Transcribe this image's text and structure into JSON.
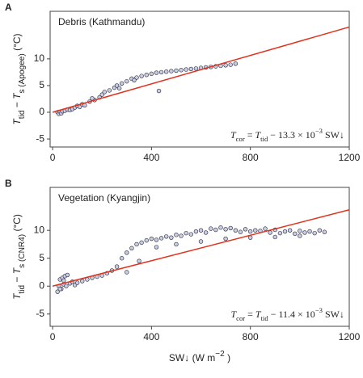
{
  "chart_data": [
    {
      "type": "scatter",
      "panel_label": "A",
      "annotation": "Debris (Kathmandu)",
      "equation": [
        {
          "text": "T",
          "style": "italic"
        },
        {
          "text": "cor",
          "style": "sub"
        },
        {
          "text": " = ",
          "style": "normal"
        },
        {
          "text": "T",
          "style": "italic"
        },
        {
          "text": "tid",
          "style": "sub"
        },
        {
          "text": " − 13.3 × 10",
          "style": "normal"
        },
        {
          "text": "−3",
          "style": "sup"
        },
        {
          "text": " SW↓",
          "style": "normal"
        }
      ],
      "y_label": [
        {
          "text": "T",
          "style": "italic"
        },
        {
          "text": "tid",
          "style": "sub"
        },
        {
          "text": " − ",
          "style": "normal"
        },
        {
          "text": "T",
          "style": "italic"
        },
        {
          "text": "s (Apogee)",
          "style": "sub"
        },
        {
          "text": "  (°C)",
          "style": "normal"
        }
      ],
      "x": [
        20,
        25,
        30,
        35,
        40,
        50,
        60,
        70,
        80,
        90,
        100,
        110,
        120,
        130,
        150,
        170,
        190,
        200,
        210,
        230,
        250,
        260,
        280,
        300,
        320,
        340,
        360,
        380,
        400,
        420,
        440,
        460,
        480,
        500,
        520,
        540,
        560,
        580,
        600,
        620,
        640,
        660,
        680,
        700,
        720,
        740,
        160,
        270,
        330,
        430
      ],
      "values": [
        0,
        -0.3,
        0.1,
        -0.2,
        0.2,
        0.3,
        0.5,
        0.4,
        0.6,
        0.9,
        1.2,
        1.0,
        1.5,
        1.3,
        2.0,
        2.3,
        2.8,
        3.3,
        3.8,
        4.1,
        4.6,
        5.0,
        5.4,
        5.8,
        6.3,
        6.5,
        6.8,
        7.0,
        7.2,
        7.4,
        7.5,
        7.6,
        7.7,
        7.8,
        7.9,
        8.0,
        8.1,
        8.2,
        8.3,
        8.4,
        8.5,
        8.6,
        8.7,
        8.8,
        8.9,
        9.1,
        2.6,
        4.5,
        6.0,
        4.0
      ],
      "color": "#c9cde3",
      "fit": {
        "x": [
          0,
          1200
        ],
        "values": [
          0,
          15.96
        ],
        "color": "#e0321c"
      },
      "xlim": [
        -10,
        1200
      ],
      "xticks": [
        0,
        400,
        800,
        1200
      ],
      "ylim": [
        -6.5,
        18.9
      ],
      "yticks": [
        -5,
        0,
        5,
        10
      ]
    },
    {
      "type": "scatter",
      "panel_label": "B",
      "annotation": "Vegetation (Kyangjin)",
      "equation": [
        {
          "text": "T",
          "style": "italic"
        },
        {
          "text": "cor",
          "style": "sub"
        },
        {
          "text": " = ",
          "style": "normal"
        },
        {
          "text": "T",
          "style": "italic"
        },
        {
          "text": "tid",
          "style": "sub"
        },
        {
          "text": " − 11.4 × 10",
          "style": "normal"
        },
        {
          "text": "−3",
          "style": "sup"
        },
        {
          "text": " SW↓",
          "style": "normal"
        }
      ],
      "y_label": [
        {
          "text": "T",
          "style": "italic"
        },
        {
          "text": "tid",
          "style": "sub"
        },
        {
          "text": " − ",
          "style": "normal"
        },
        {
          "text": "T",
          "style": "italic"
        },
        {
          "text": "s (CNR4)",
          "style": "sub"
        },
        {
          "text": "  (°C)",
          "style": "normal"
        }
      ],
      "x_label": [
        {
          "text": "SW↓ (W m",
          "style": "normal"
        },
        {
          "text": "−2",
          "style": "sup"
        },
        {
          "text": " )",
          "style": "normal"
        }
      ],
      "x": [
        20,
        25,
        30,
        35,
        40,
        45,
        50,
        55,
        60,
        70,
        80,
        90,
        100,
        120,
        140,
        160,
        180,
        200,
        220,
        240,
        260,
        280,
        300,
        320,
        340,
        360,
        380,
        400,
        420,
        440,
        460,
        480,
        500,
        520,
        540,
        560,
        580,
        600,
        620,
        640,
        660,
        680,
        700,
        720,
        740,
        760,
        780,
        800,
        820,
        840,
        860,
        880,
        900,
        920,
        940,
        960,
        980,
        1000,
        1020,
        1040,
        1060,
        1080,
        1100,
        30,
        45,
        300,
        350,
        420,
        500,
        600,
        700,
        800,
        900,
        1000
      ],
      "values": [
        -1,
        0,
        1.2,
        -0.5,
        1.5,
        0.3,
        1.8,
        0,
        2,
        0.5,
        0.8,
        0.2,
        0.6,
        0.9,
        1.2,
        1.5,
        1.7,
        1.9,
        2.3,
        2.8,
        3.5,
        5,
        6,
        6.8,
        7.5,
        7.8,
        8.2,
        8.5,
        8.3,
        8.6,
        8.9,
        8.7,
        9.2,
        9,
        9.5,
        9.3,
        9.8,
        10,
        9.6,
        10.3,
        10.1,
        10.5,
        10.2,
        10.4,
        10,
        9.7,
        10.2,
        9.8,
        10,
        9.9,
        10.3,
        9.6,
        10.1,
        9.5,
        9.8,
        10,
        9.4,
        9.9,
        9.6,
        9.8,
        9.5,
        10,
        9.7,
        -0.5,
        1,
        2.5,
        4.5,
        7,
        7.5,
        8,
        8.5,
        8.7,
        8.8,
        9
      ],
      "color": "#c9cde3",
      "fit": {
        "x": [
          0,
          1200
        ],
        "values": [
          0,
          13.68
        ],
        "color": "#e0321c"
      },
      "xlim": [
        -10,
        1200
      ],
      "xticks": [
        0,
        400,
        800,
        1200
      ],
      "ylim": [
        -7.2,
        17.7
      ],
      "yticks": [
        -5,
        0,
        5,
        10
      ]
    }
  ]
}
